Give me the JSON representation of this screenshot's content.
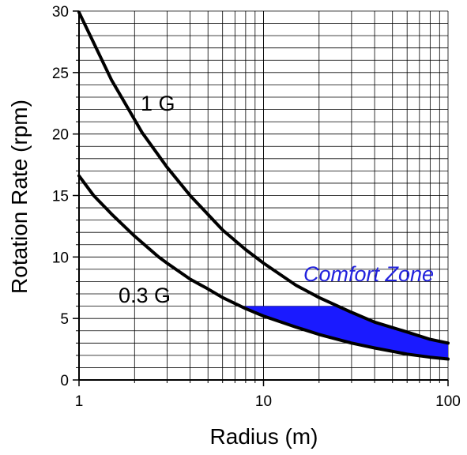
{
  "chart_data": {
    "type": "line",
    "xlabel": "Radius (m)",
    "ylabel": "Rotation Rate (rpm)",
    "x_scale": "log",
    "xlim": [
      1,
      100
    ],
    "ylim": [
      0,
      30
    ],
    "x_ticks": [
      {
        "value": 1,
        "label": "1"
      },
      {
        "value": 10,
        "label": "10"
      },
      {
        "value": 100,
        "label": "100"
      }
    ],
    "y_ticks": [
      {
        "value": 0,
        "label": "0"
      },
      {
        "value": 5,
        "label": "5"
      },
      {
        "value": 10,
        "label": "10"
      },
      {
        "value": 15,
        "label": "15"
      },
      {
        "value": 20,
        "label": "20"
      },
      {
        "value": 25,
        "label": "25"
      },
      {
        "value": 30,
        "label": "30"
      }
    ],
    "grid": true,
    "series": [
      {
        "name": "1 G",
        "color": "#000000",
        "points": [
          [
            1,
            29.9
          ],
          [
            1.5,
            24.4
          ],
          [
            2.2,
            20.1
          ],
          [
            3,
            17.3
          ],
          [
            4,
            15.0
          ],
          [
            6,
            12.2
          ],
          [
            8,
            10.6
          ],
          [
            10,
            9.5
          ],
          [
            15,
            7.7
          ],
          [
            20,
            6.7
          ],
          [
            30,
            5.5
          ],
          [
            40,
            4.7
          ],
          [
            60,
            3.9
          ],
          [
            80,
            3.3
          ],
          [
            100,
            3.0
          ]
        ]
      },
      {
        "name": "0.3 G",
        "color": "#000000",
        "points": [
          [
            1,
            16.6
          ],
          [
            1.2,
            15.0
          ],
          [
            1.5,
            13.5
          ],
          [
            2,
            11.7
          ],
          [
            2.7,
            10.0
          ],
          [
            3,
            9.5
          ],
          [
            4,
            8.2
          ],
          [
            5,
            7.4
          ],
          [
            6,
            6.7
          ],
          [
            8,
            5.8
          ],
          [
            10,
            5.2
          ],
          [
            15,
            4.3
          ],
          [
            20,
            3.7
          ],
          [
            30,
            3.0
          ],
          [
            40,
            2.6
          ],
          [
            60,
            2.1
          ],
          [
            80,
            1.85
          ],
          [
            100,
            1.7
          ]
        ]
      }
    ],
    "region": {
      "label": "Comfort Zone",
      "color": "#1a1aff",
      "label_color": "#2222dd",
      "max_rpm": 6
    }
  }
}
